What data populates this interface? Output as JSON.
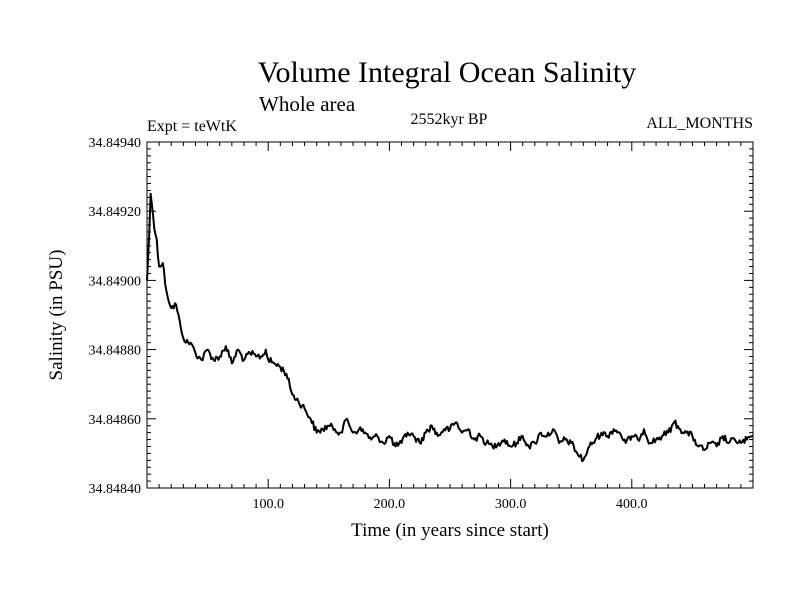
{
  "chart_data": {
    "type": "line",
    "title": "Volume Integral Ocean Salinity",
    "subtitle": "Whole area",
    "expt_label": "Expt = teWtK",
    "period_label": "2552kyr BP",
    "months_label": "ALL_MONTHS",
    "xlabel": "Time (in years since start)",
    "ylabel": "Salinity (in PSU)",
    "xlim": [
      0,
      500
    ],
    "ylim": [
      34.8484,
      34.8494
    ],
    "x_ticks": [
      {
        "value": 100,
        "label": "100.0"
      },
      {
        "value": 200,
        "label": "200.0"
      },
      {
        "value": 300,
        "label": "300.0"
      },
      {
        "value": 400,
        "label": "400.0"
      }
    ],
    "y_ticks": [
      {
        "value": 34.8484,
        "label": "34.84840"
      },
      {
        "value": 34.8486,
        "label": "34.84860"
      },
      {
        "value": 34.8488,
        "label": "34.84880"
      },
      {
        "value": 34.849,
        "label": "34.84900"
      },
      {
        "value": 34.8492,
        "label": "34.84920"
      },
      {
        "value": 34.8494,
        "label": "34.84940"
      }
    ],
    "series": [
      {
        "name": "salinity",
        "color": "#000000",
        "x": [
          0,
          2,
          3,
          4,
          6,
          8,
          10,
          13,
          16,
          20,
          24,
          28,
          32,
          36,
          40,
          45,
          50,
          55,
          60,
          65,
          70,
          75,
          80,
          85,
          90,
          95,
          98,
          100,
          105,
          110,
          115,
          120,
          125,
          130,
          135,
          140,
          145,
          150,
          155,
          160,
          165,
          170,
          175,
          180,
          185,
          190,
          195,
          200,
          205,
          210,
          215,
          220,
          225,
          230,
          235,
          240,
          245,
          250,
          255,
          260,
          265,
          270,
          275,
          280,
          285,
          290,
          295,
          300,
          305,
          310,
          315,
          320,
          325,
          330,
          335,
          340,
          345,
          350,
          355,
          360,
          365,
          370,
          375,
          380,
          385,
          390,
          395,
          400,
          405,
          410,
          415,
          420,
          425,
          430,
          435,
          440,
          445,
          450,
          455,
          460,
          465,
          470,
          475,
          480,
          485,
          490,
          495,
          500
        ],
        "y": [
          34.849,
          34.84915,
          34.84925,
          34.84922,
          34.84915,
          34.84912,
          34.84904,
          34.84905,
          34.84897,
          34.84892,
          34.84893,
          34.84886,
          34.84882,
          34.84882,
          34.84879,
          34.84877,
          34.8488,
          34.84877,
          34.84878,
          34.84881,
          34.84876,
          34.8488,
          34.84877,
          34.84879,
          34.84878,
          34.84878,
          34.8488,
          34.84877,
          34.84876,
          34.84875,
          34.84873,
          34.84867,
          34.84865,
          34.84863,
          34.8486,
          34.84856,
          34.84857,
          34.84858,
          34.84857,
          34.84856,
          34.8486,
          34.84856,
          34.84857,
          34.84856,
          34.84854,
          34.84855,
          34.84853,
          34.84855,
          34.84852,
          34.84853,
          34.84856,
          34.84855,
          34.84853,
          34.84856,
          34.84858,
          34.84855,
          34.84857,
          34.84857,
          34.84859,
          34.84856,
          34.84857,
          34.84854,
          34.84855,
          34.84853,
          34.84852,
          34.84853,
          34.84854,
          34.84852,
          34.84853,
          34.84855,
          34.84852,
          34.84853,
          34.84856,
          34.84855,
          34.84857,
          34.84853,
          34.84854,
          34.84853,
          34.8485,
          34.84848,
          34.84852,
          34.84854,
          34.84856,
          34.84855,
          34.84857,
          34.84856,
          34.84853,
          34.84855,
          34.84854,
          34.84857,
          34.84853,
          34.84854,
          34.84855,
          34.84856,
          34.84859,
          34.84857,
          34.84856,
          34.84855,
          34.84852,
          34.84851,
          34.84853,
          34.84852,
          34.84855,
          34.84853,
          34.84854,
          34.84853,
          34.84854,
          34.84855
        ]
      }
    ]
  }
}
